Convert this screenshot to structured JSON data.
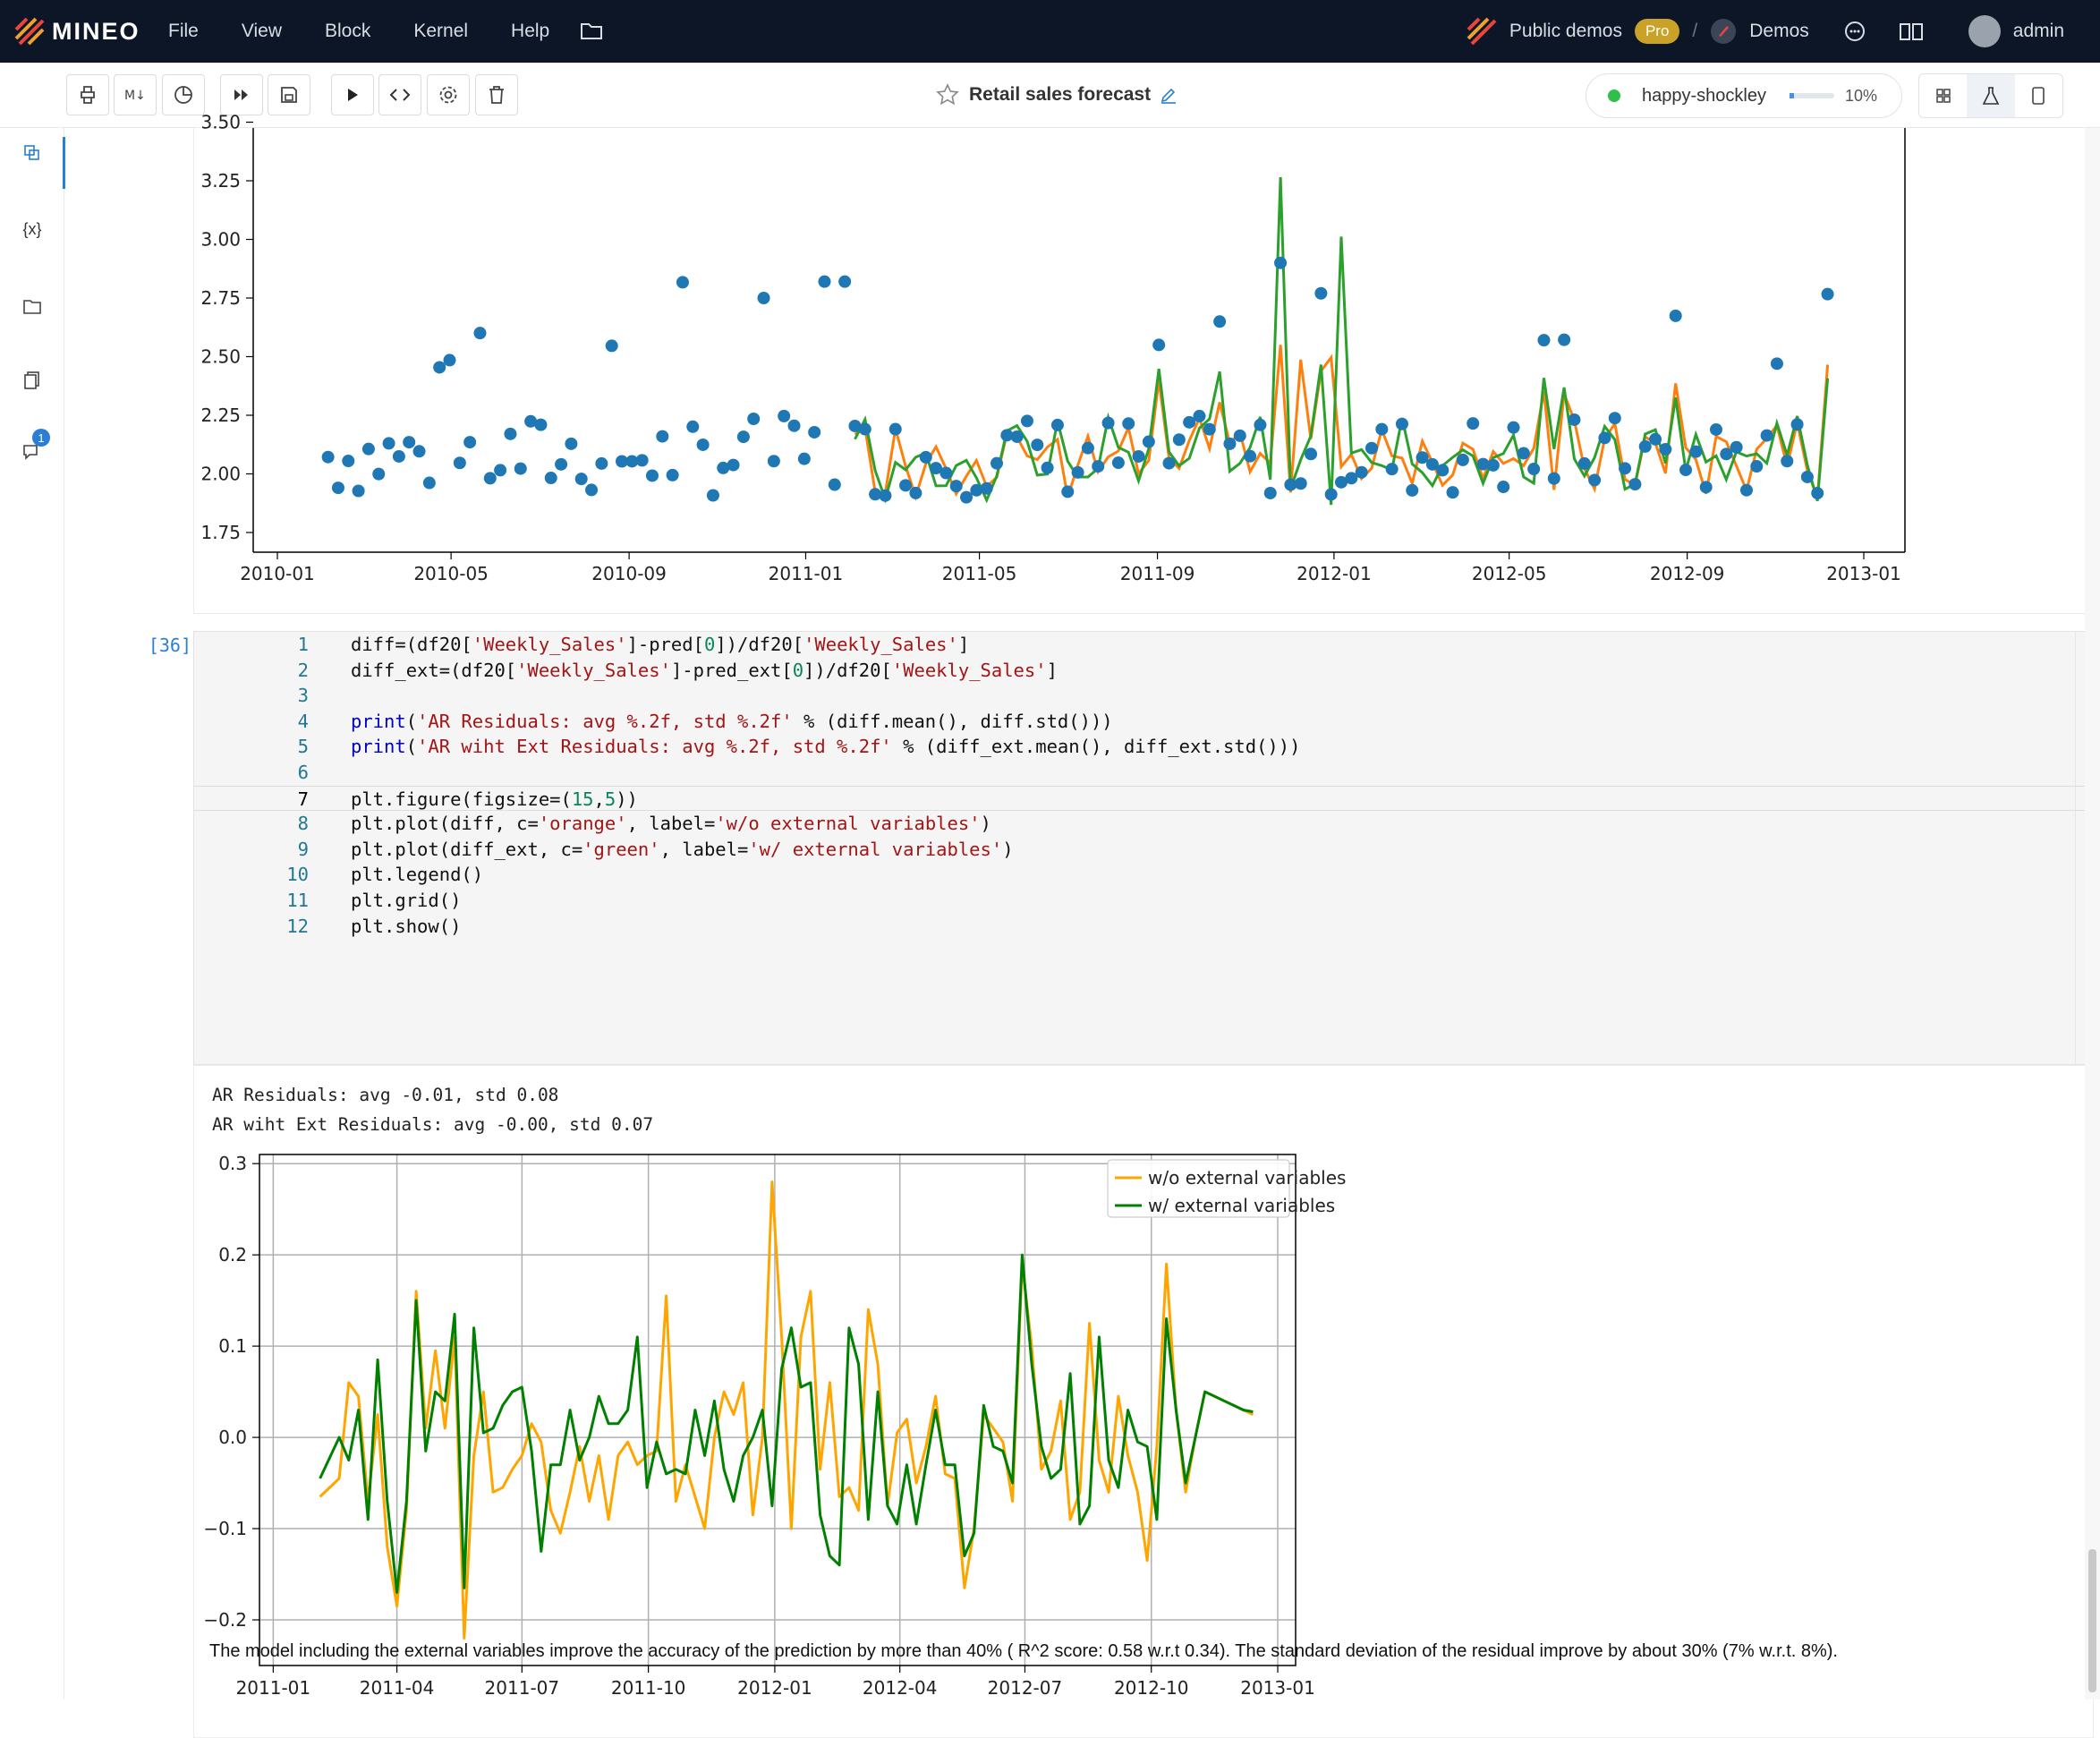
{
  "topbar": {
    "brand": "MINEO",
    "menu": [
      "File",
      "View",
      "Block",
      "Kernel",
      "Help"
    ],
    "public_demos": "Public demos",
    "pro": "Pro",
    "separator": "/",
    "demos": "Demos",
    "user": "admin"
  },
  "toolbar": {
    "title": "Retail sales forecast",
    "kernel_name": "happy-shockley",
    "kernel_progress": 0.1,
    "kernel_percent": "10%"
  },
  "sidebar": {
    "variables_label": "{x}",
    "notification_count": "1"
  },
  "chart1": {
    "type": "scatter+line",
    "y_ticks": [
      "1.75",
      "2.00",
      "2.25",
      "2.50",
      "2.75",
      "3.00",
      "3.25",
      "3.50"
    ],
    "x_ticks": [
      "2010-01",
      "2010-05",
      "2010-09",
      "2011-01",
      "2011-05",
      "2011-09",
      "2012-01",
      "2012-05",
      "2012-09",
      "2013-01"
    ],
    "colors": {
      "points": "#1f77b4",
      "pred": "#ff7f0e",
      "pred_ext": "#2ca02c"
    }
  },
  "code_cell": {
    "exec_count": "[36]",
    "lines": [
      {
        "n": "1",
        "tokens": [
          [
            "t",
            "diff=(df20["
          ],
          [
            "s",
            "'Weekly_Sales'"
          ],
          [
            "t",
            "]-pred["
          ],
          [
            "n",
            "0"
          ],
          [
            "t",
            "])/df20["
          ],
          [
            "s",
            "'Weekly_Sales'"
          ],
          [
            "t",
            "]"
          ]
        ]
      },
      {
        "n": "2",
        "tokens": [
          [
            "t",
            "diff_ext=(df20["
          ],
          [
            "s",
            "'Weekly_Sales'"
          ],
          [
            "t",
            "]-pred_ext["
          ],
          [
            "n",
            "0"
          ],
          [
            "t",
            "])/df20["
          ],
          [
            "s",
            "'Weekly_Sales'"
          ],
          [
            "t",
            "]"
          ]
        ]
      },
      {
        "n": "3",
        "tokens": []
      },
      {
        "n": "4",
        "tokens": [
          [
            "f",
            "print"
          ],
          [
            "t",
            "("
          ],
          [
            "s",
            "'AR Residuals: avg %.2f, std %.2f'"
          ],
          [
            "t",
            " % (diff.mean(), diff.std()))"
          ]
        ]
      },
      {
        "n": "5",
        "tokens": [
          [
            "f",
            "print"
          ],
          [
            "t",
            "("
          ],
          [
            "s",
            "'AR wiht Ext Residuals: avg %.2f, std %.2f'"
          ],
          [
            "t",
            " % (diff_ext.mean(), diff_ext.std()))"
          ]
        ]
      },
      {
        "n": "6",
        "tokens": []
      },
      {
        "n": "7",
        "tokens": [
          [
            "t",
            "plt.figure(figsize=("
          ],
          [
            "n",
            "15"
          ],
          [
            "t",
            ","
          ],
          [
            "n",
            "5"
          ],
          [
            "t",
            "))"
          ]
        ]
      },
      {
        "n": "8",
        "tokens": [
          [
            "t",
            "plt.plot(diff, c="
          ],
          [
            "s",
            "'orange'"
          ],
          [
            "t",
            ", label="
          ],
          [
            "s",
            "'w/o external variables'"
          ],
          [
            "t",
            ")"
          ]
        ]
      },
      {
        "n": "9",
        "tokens": [
          [
            "t",
            "plt.plot(diff_ext, c="
          ],
          [
            "s",
            "'green'"
          ],
          [
            "t",
            ", label="
          ],
          [
            "s",
            "'w/ external variables'"
          ],
          [
            "t",
            ")"
          ]
        ]
      },
      {
        "n": "10",
        "tokens": [
          [
            "t",
            "plt.legend()"
          ]
        ]
      },
      {
        "n": "11",
        "tokens": [
          [
            "t",
            "plt.grid()"
          ]
        ]
      },
      {
        "n": "12",
        "tokens": [
          [
            "t",
            "plt.show()"
          ]
        ]
      }
    ]
  },
  "stdout": [
    "AR Residuals: avg -0.01, std 0.08",
    "AR wiht Ext Residuals: avg -0.00, std 0.07"
  ],
  "chart_data": {
    "type": "line",
    "x": [
      "2011-02-04",
      "2011-02-18",
      "2011-02-25",
      "2011-03-04",
      "2011-03-11",
      "2011-03-18",
      "2011-03-25",
      "2011-04-01",
      "2011-04-08",
      "2011-04-15",
      "2011-04-22",
      "2011-04-29",
      "2011-05-06",
      "2011-05-13",
      "2011-05-20",
      "2011-05-27",
      "2011-06-03",
      "2011-06-10",
      "2011-06-17",
      "2011-06-24",
      "2011-07-01",
      "2011-07-08",
      "2011-07-15",
      "2011-07-22",
      "2011-07-29",
      "2011-08-05",
      "2011-08-12",
      "2011-08-19",
      "2011-08-26",
      "2011-09-02",
      "2011-09-09",
      "2011-09-16",
      "2011-09-23",
      "2011-09-30",
      "2011-10-07",
      "2011-10-14",
      "2011-10-21",
      "2011-10-28",
      "2011-11-04",
      "2011-11-11",
      "2011-11-18",
      "2011-11-25",
      "2011-12-02",
      "2011-12-09",
      "2011-12-16",
      "2011-12-23",
      "2011-12-30",
      "2012-01-06",
      "2012-01-13",
      "2012-01-20",
      "2012-01-27",
      "2012-02-03",
      "2012-02-10",
      "2012-02-17",
      "2012-02-24",
      "2012-03-02",
      "2012-03-09",
      "2012-03-16",
      "2012-03-23",
      "2012-03-30",
      "2012-04-06",
      "2012-04-13",
      "2012-04-20",
      "2012-04-27",
      "2012-05-04",
      "2012-05-11",
      "2012-05-18",
      "2012-05-25",
      "2012-06-01",
      "2012-06-08",
      "2012-06-15",
      "2012-06-22",
      "2012-06-29",
      "2012-07-06",
      "2012-07-13",
      "2012-07-20",
      "2012-07-27",
      "2012-08-03",
      "2012-08-10",
      "2012-08-17",
      "2012-08-24",
      "2012-08-31",
      "2012-09-07",
      "2012-09-14",
      "2012-09-21",
      "2012-09-28",
      "2012-10-05",
      "2012-10-12",
      "2012-10-19",
      "2012-10-26",
      "2012-11-02",
      "2012-11-09",
      "2012-11-16",
      "2012-11-23",
      "2012-11-30",
      "2012-12-07",
      "2012-12-14"
    ],
    "series": [
      {
        "name": "w/o external variables",
        "color": "#ffa500",
        "values": [
          -0.065,
          -0.045,
          0.06,
          0.045,
          -0.07,
          0.025,
          -0.12,
          -0.185,
          -0.08,
          0.16,
          0.01,
          0.095,
          0.01,
          0.11,
          -0.22,
          -0.02,
          0.05,
          -0.06,
          -0.055,
          -0.035,
          -0.02,
          0.015,
          -0.005,
          -0.08,
          -0.105,
          -0.06,
          -0.01,
          -0.07,
          -0.02,
          -0.09,
          -0.02,
          -0.005,
          -0.03,
          -0.02,
          -0.015,
          0.155,
          -0.07,
          -0.03,
          -0.065,
          -0.1,
          0.0,
          0.05,
          0.025,
          0.06,
          -0.085,
          0.0,
          0.28,
          0.11,
          -0.1,
          0.11,
          0.16,
          -0.035,
          0.06,
          -0.065,
          -0.055,
          -0.08,
          0.14,
          0.08,
          -0.075,
          0.005,
          0.02,
          -0.05,
          -0.01,
          0.045,
          -0.04,
          -0.045,
          -0.165,
          -0.1,
          0.025,
          0.01,
          -0.005,
          -0.07,
          0.19,
          0.1,
          -0.035,
          -0.015,
          0.04,
          -0.09,
          -0.06,
          0.125,
          -0.025,
          -0.06,
          0.045,
          -0.02,
          -0.06,
          -0.135,
          -0.01,
          0.19,
          0.03,
          -0.06,
          0.0,
          0.05,
          0.045,
          0.04,
          0.035,
          0.03,
          0.025
        ]
      },
      {
        "name": "w/ external variables",
        "color": "#008000",
        "values": [
          -0.045,
          0.0,
          -0.025,
          0.03,
          -0.09,
          0.085,
          -0.07,
          -0.17,
          -0.07,
          0.15,
          -0.015,
          0.05,
          0.04,
          0.135,
          -0.165,
          0.12,
          0.005,
          0.01,
          0.035,
          0.05,
          0.055,
          -0.015,
          -0.125,
          -0.03,
          -0.03,
          0.03,
          -0.025,
          0.0,
          0.045,
          0.015,
          0.015,
          0.03,
          0.11,
          -0.055,
          -0.005,
          -0.04,
          -0.035,
          -0.04,
          0.03,
          -0.02,
          0.04,
          -0.035,
          -0.07,
          -0.02,
          0.0,
          0.03,
          -0.075,
          0.075,
          0.12,
          0.055,
          0.06,
          -0.085,
          -0.13,
          -0.14,
          0.12,
          0.08,
          -0.09,
          0.05,
          -0.075,
          -0.095,
          -0.03,
          -0.095,
          -0.03,
          0.03,
          -0.03,
          -0.03,
          -0.13,
          -0.105,
          0.035,
          -0.01,
          -0.015,
          -0.05,
          0.2,
          0.08,
          -0.01,
          -0.045,
          -0.035,
          0.07,
          -0.095,
          -0.075,
          0.11,
          -0.025,
          -0.055,
          0.03,
          -0.005,
          -0.01,
          -0.09,
          0.13,
          0.03,
          -0.05,
          0.0,
          0.05,
          0.045,
          0.04,
          0.035,
          0.03,
          0.028
        ]
      }
    ],
    "y_ticks": [
      "0.3",
      "0.2",
      "0.1",
      "0.0",
      "−0.1",
      "−0.2"
    ],
    "x_ticks": [
      "2011-01",
      "2011-04",
      "2011-07",
      "2011-10",
      "2012-01",
      "2012-04",
      "2012-07",
      "2012-10",
      "2013-01"
    ],
    "ylim": [
      -0.25,
      0.31
    ],
    "xlim": [
      "2010-12-22",
      "2013-01-14"
    ],
    "grid": true,
    "legend": "top-right"
  },
  "markdown": "The model including the external variables improve the accuracy of the prediction by more than 40% ( R^2 score: 0.58 w.r.t 0.34). The standard deviation of the residual improve by about 30% (7% w.r.t. 8%)."
}
